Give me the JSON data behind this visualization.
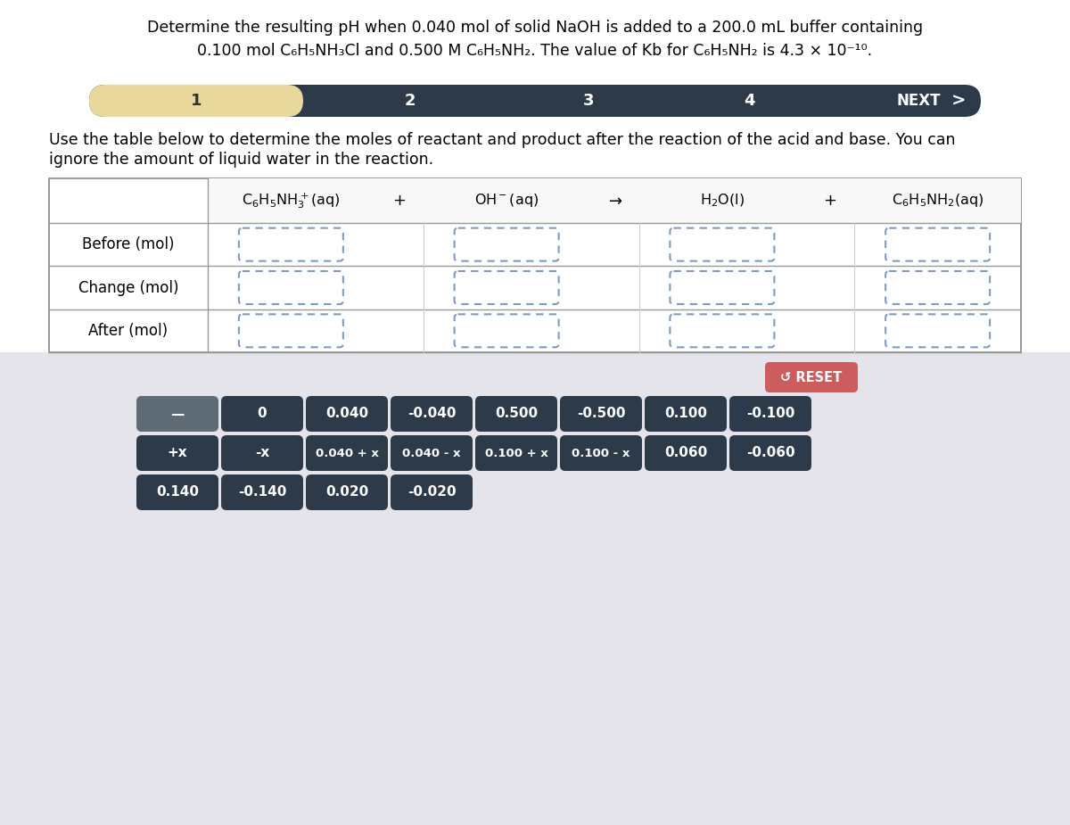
{
  "title_line1": "Determine the resulting pH when 0.040 mol of solid NaOH is added to a 200.0 mL buffer containing",
  "title_line2": "0.100 mol C₆H₅NH₃Cl and 0.500 M C₆H₅NH₂. The value of Kb for C₆H₅NH₂ is 4.3 × 10⁻¹⁰.",
  "nav_bar_bg": "#2d3a4a",
  "nav_bar_highlight": "#e8d89a",
  "nav_steps": [
    "1",
    "2",
    "3",
    "4"
  ],
  "instruction_line1": "Use the table below to determine the moles of reactant and product after the reaction of the acid and base. You can",
  "instruction_line2": "ignore the amount of liquid water in the reaction.",
  "cell_border": "#7a9cc5",
  "reset_btn_color": "#cd5c5c",
  "reset_btn_text": "↺ RESET",
  "dark_btn_color": "#2d3a4a",
  "gray_btn_color": "#6c757d",
  "buttons_row1": [
    "—",
    "0",
    "0.040",
    "-0.040",
    "0.500",
    "-0.500",
    "0.100",
    "-0.100"
  ],
  "buttons_row2": [
    "+x",
    "-x",
    "0.040 + x",
    "0.040 - x",
    "0.100 + x",
    "0.100 - x",
    "0.060",
    "-0.060"
  ],
  "buttons_row3": [
    "0.140",
    "-0.140",
    "0.020",
    "-0.020"
  ],
  "fig_bg": "#e4e4ea",
  "white_bg": "#ffffff",
  "row_labels": [
    "Before (mol)",
    "Change (mol)",
    "After (mol)"
  ]
}
